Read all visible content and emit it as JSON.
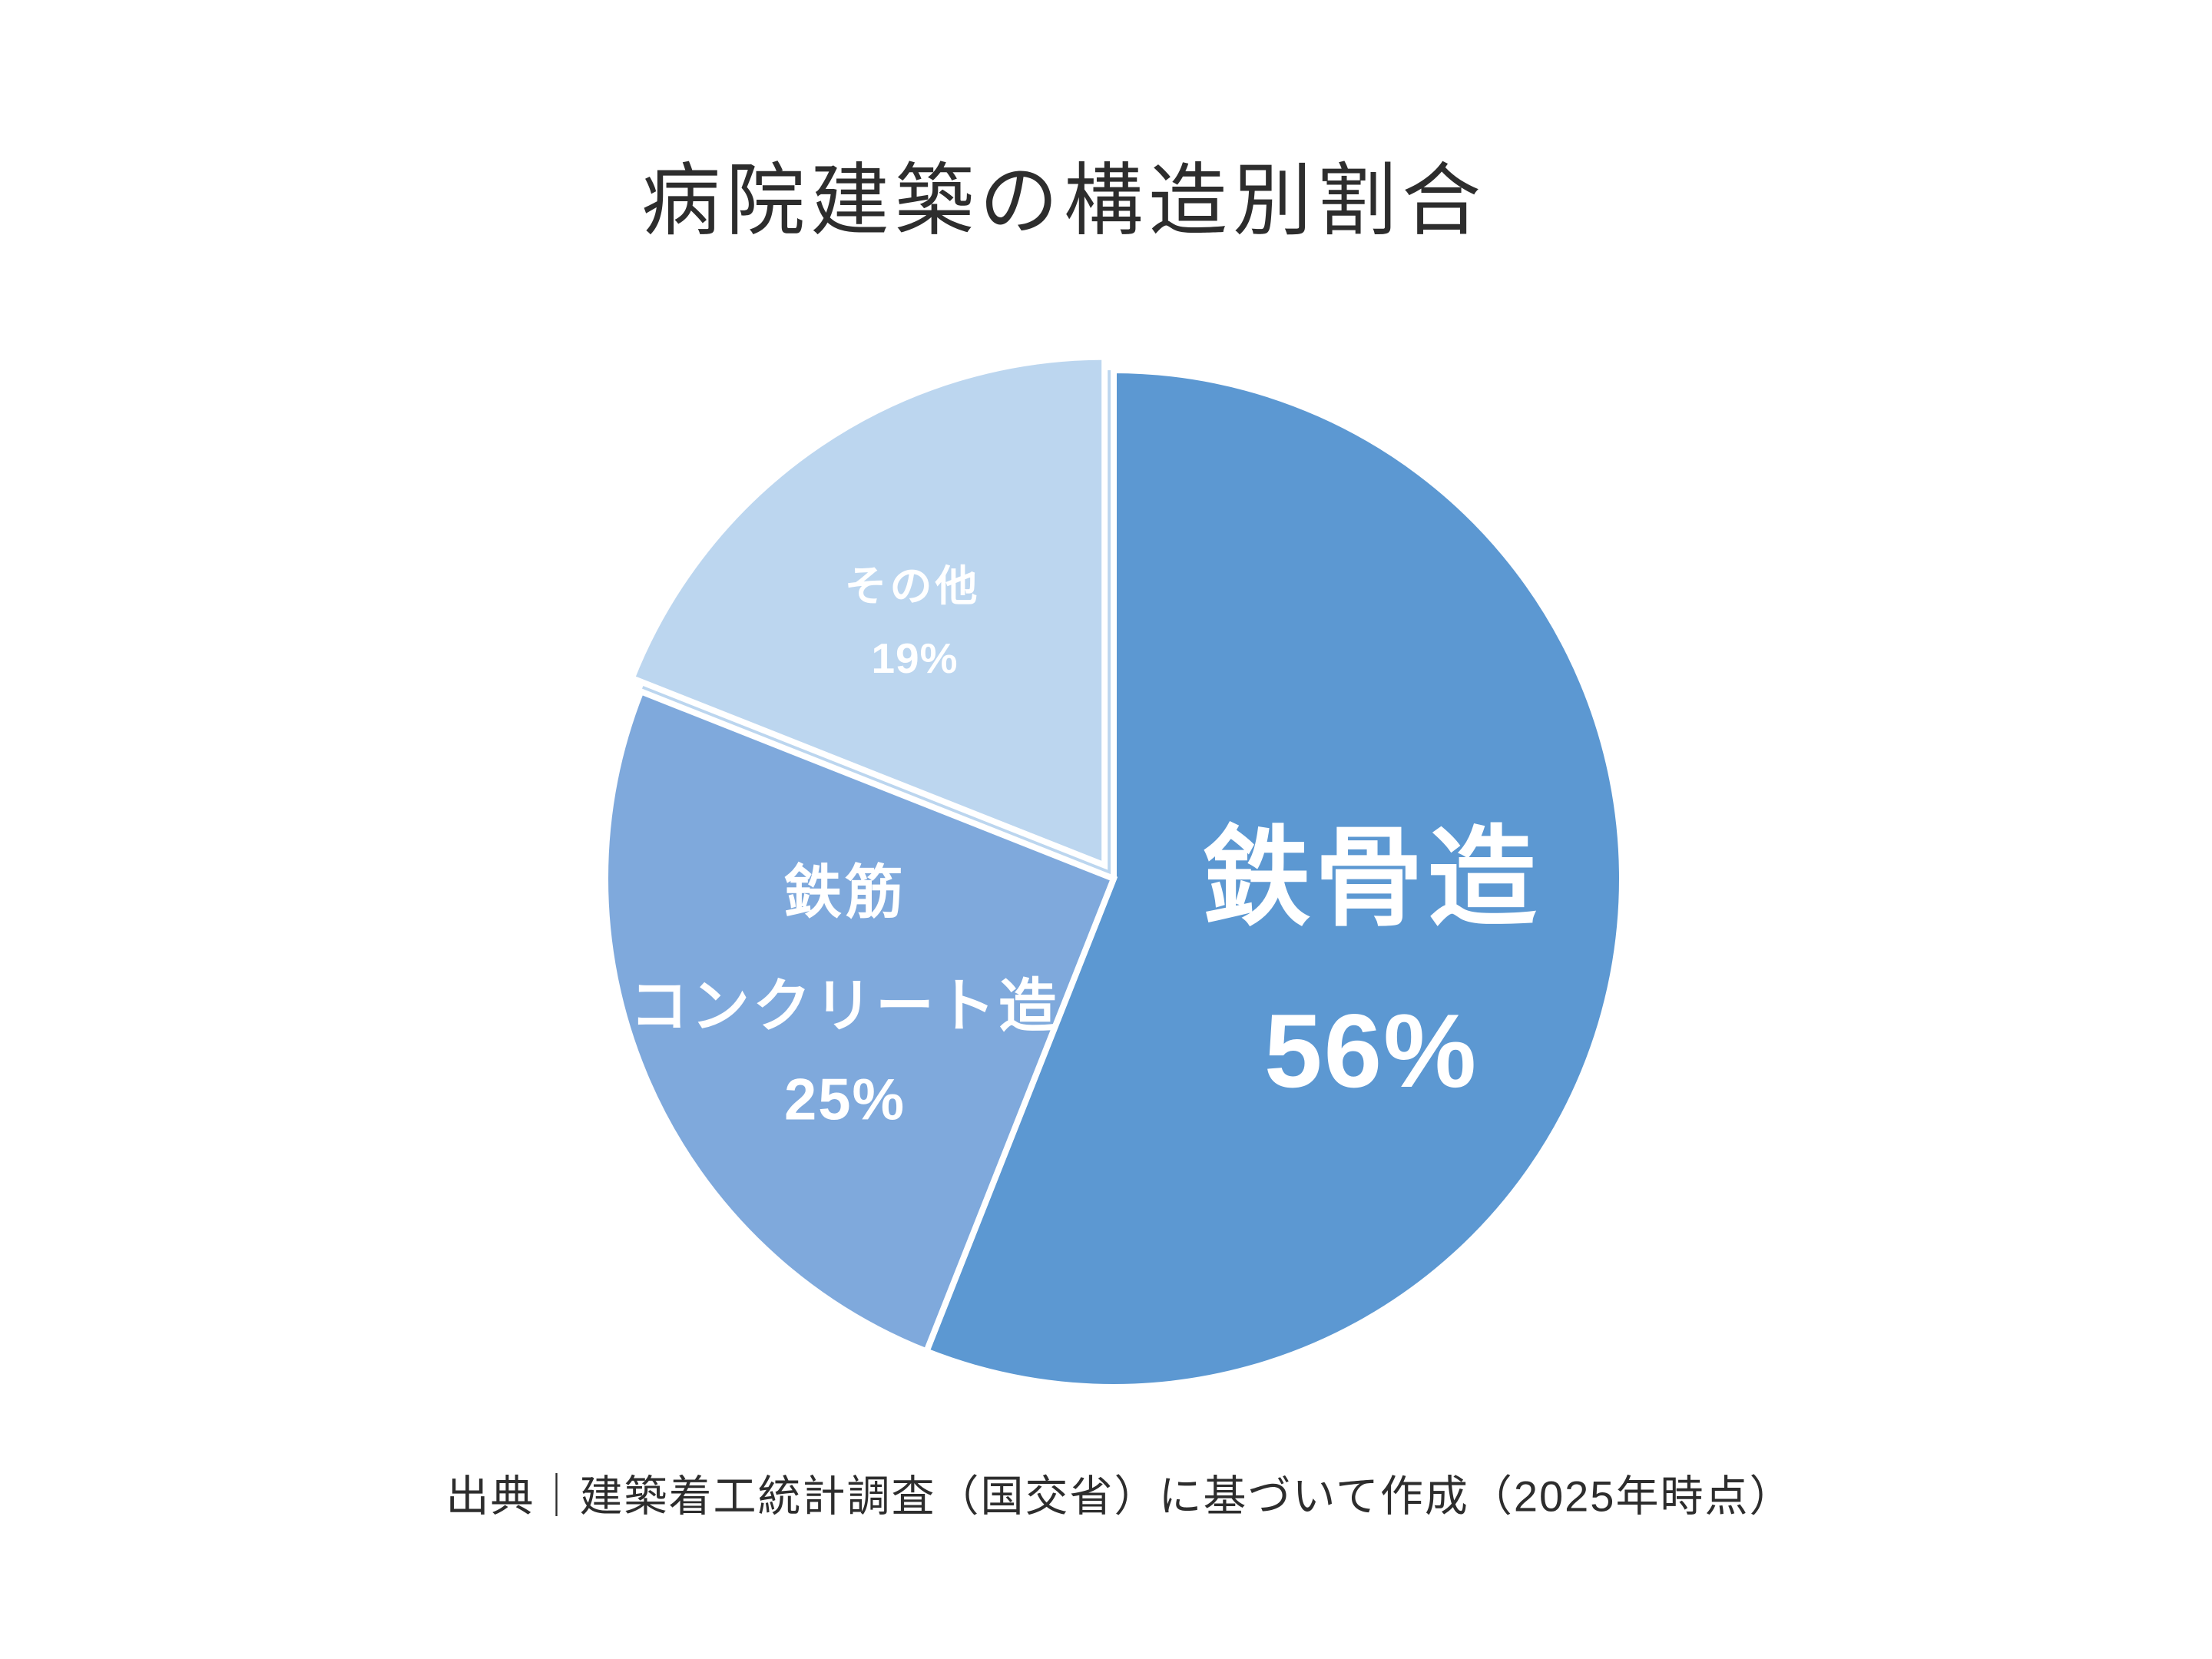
{
  "title": "病院建築の構造別割合",
  "source_note": "出典｜建築着工統計調査（国交省）に基づいて作成（2025年時点）",
  "colors": {
    "background": "#FFFFFF",
    "title_text": "#2D2D2D",
    "source_text": "#2D2D2D",
    "slice_border": "#FFFFFF",
    "slice_label_text": "#FFFFFF",
    "steel_frame": "#5C98D2",
    "reinforced_concrete": "#7FA9DC",
    "other": "#BCD6EF"
  },
  "chart_data": {
    "type": "pie",
    "title": "病院建築の構造別割合",
    "unit": "%",
    "start_angle_deg": 0,
    "direction": "clockwise",
    "legend_position": "none",
    "labels_inside_slices": true,
    "border_color": "#FFFFFF",
    "segments": [
      {
        "label": "鉄骨造",
        "label_lines": [
          "鉄骨造"
        ],
        "value": 56,
        "pct": "56%",
        "color": "#5C98D2",
        "exploded": false
      },
      {
        "label": "鉄筋コンクリート造",
        "label_lines": [
          "鉄筋",
          "コンクリート造"
        ],
        "value": 25,
        "pct": "25%",
        "color": "#7FA9DC",
        "exploded": false
      },
      {
        "label": "その他",
        "label_lines": [
          "その他"
        ],
        "value": 19,
        "pct": "19%",
        "color": "#BCD6EF",
        "exploded": true
      }
    ],
    "source_note": "出典｜建築着工統計調査（国交省）に基づいて作成（2025年時点）"
  }
}
